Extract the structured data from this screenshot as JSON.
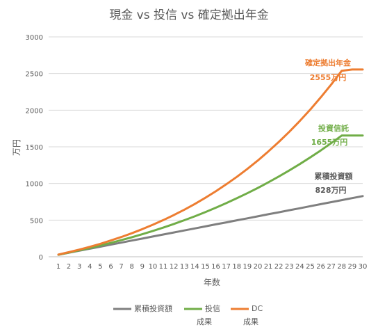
{
  "chart_data": {
    "type": "line",
    "title": "現金 vs 投信 vs 確定拠出年金",
    "xlabel": "年数",
    "ylabel": "万円",
    "x": [
      1,
      2,
      3,
      4,
      5,
      6,
      7,
      8,
      9,
      10,
      11,
      12,
      13,
      14,
      15,
      16,
      17,
      18,
      19,
      20,
      21,
      22,
      23,
      24,
      25,
      26,
      27,
      28,
      29,
      30
    ],
    "ylim": [
      0,
      3000
    ],
    "yticks": [
      0,
      500,
      1000,
      1500,
      2000,
      2500,
      3000
    ],
    "grid": true,
    "legend_position": "bottom",
    "series": [
      {
        "name": "累積投資額",
        "color": "#7f7f7f",
        "values": [
          28,
          55,
          83,
          110,
          138,
          166,
          193,
          221,
          248,
          276,
          304,
          331,
          359,
          386,
          414,
          442,
          469,
          497,
          524,
          552,
          580,
          607,
          635,
          662,
          690,
          718,
          745,
          773,
          800,
          828
        ]
      },
      {
        "name": "投信\n成果",
        "color": "#70ad47",
        "values": [
          28,
          57,
          88,
          120,
          154,
          189,
          227,
          266,
          308,
          352,
          398,
          447,
          498,
          552,
          609,
          669,
          732,
          798,
          867,
          939,
          1015,
          1095,
          1178,
          1265,
          1356,
          1451,
          1550,
          1654,
          1655,
          1655
        ]
      },
      {
        "name": "DC\n成果",
        "color": "#ed7d31",
        "values": [
          30,
          63,
          98,
          136,
          177,
          222,
          270,
          321,
          377,
          437,
          500,
          569,
          642,
          720,
          804,
          893,
          989,
          1090,
          1198,
          1313,
          1436,
          1566,
          1705,
          1852,
          2008,
          2175,
          2351,
          2538,
          2555,
          2555
        ]
      }
    ],
    "annotations": [
      {
        "label": "確定拠出年金",
        "value": "2555万円",
        "color": "#ed7d31"
      },
      {
        "label": "投資信託",
        "value": "1655万円",
        "color": "#70ad47"
      },
      {
        "label": "累積投資額",
        "value": "828万円",
        "color": "#595959"
      }
    ]
  }
}
